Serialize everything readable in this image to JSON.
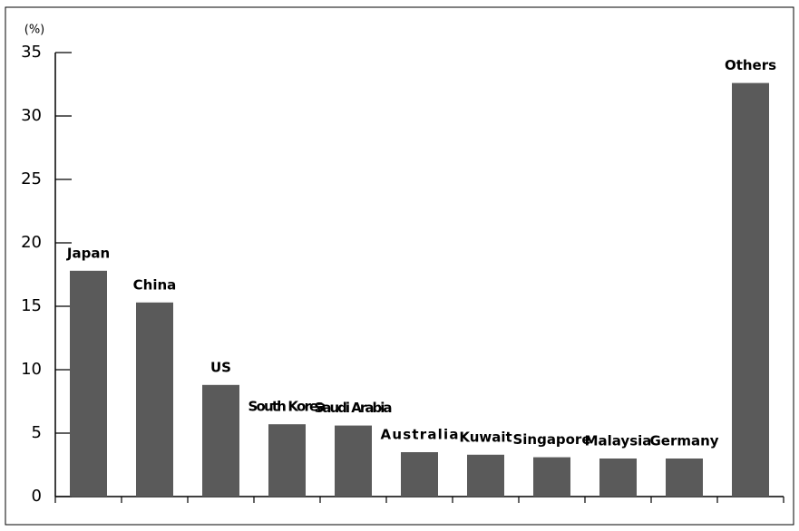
{
  "chart_data": {
    "type": "bar",
    "unit_label": "(%)",
    "categories": [
      "Japan",
      "China",
      "US",
      "South Korea",
      "Saudi Arabia",
      "Australia",
      "Kuwait",
      "Singapore",
      "Malaysia",
      "Germany",
      "Others"
    ],
    "values": [
      17.8,
      15.3,
      8.8,
      5.7,
      5.6,
      3.5,
      3.3,
      3.1,
      3.0,
      3.0,
      32.6
    ],
    "color": "#5a5a5a",
    "ylim": [
      0,
      35
    ],
    "yticks": [
      0,
      5,
      10,
      15,
      20,
      25,
      30,
      35
    ]
  }
}
